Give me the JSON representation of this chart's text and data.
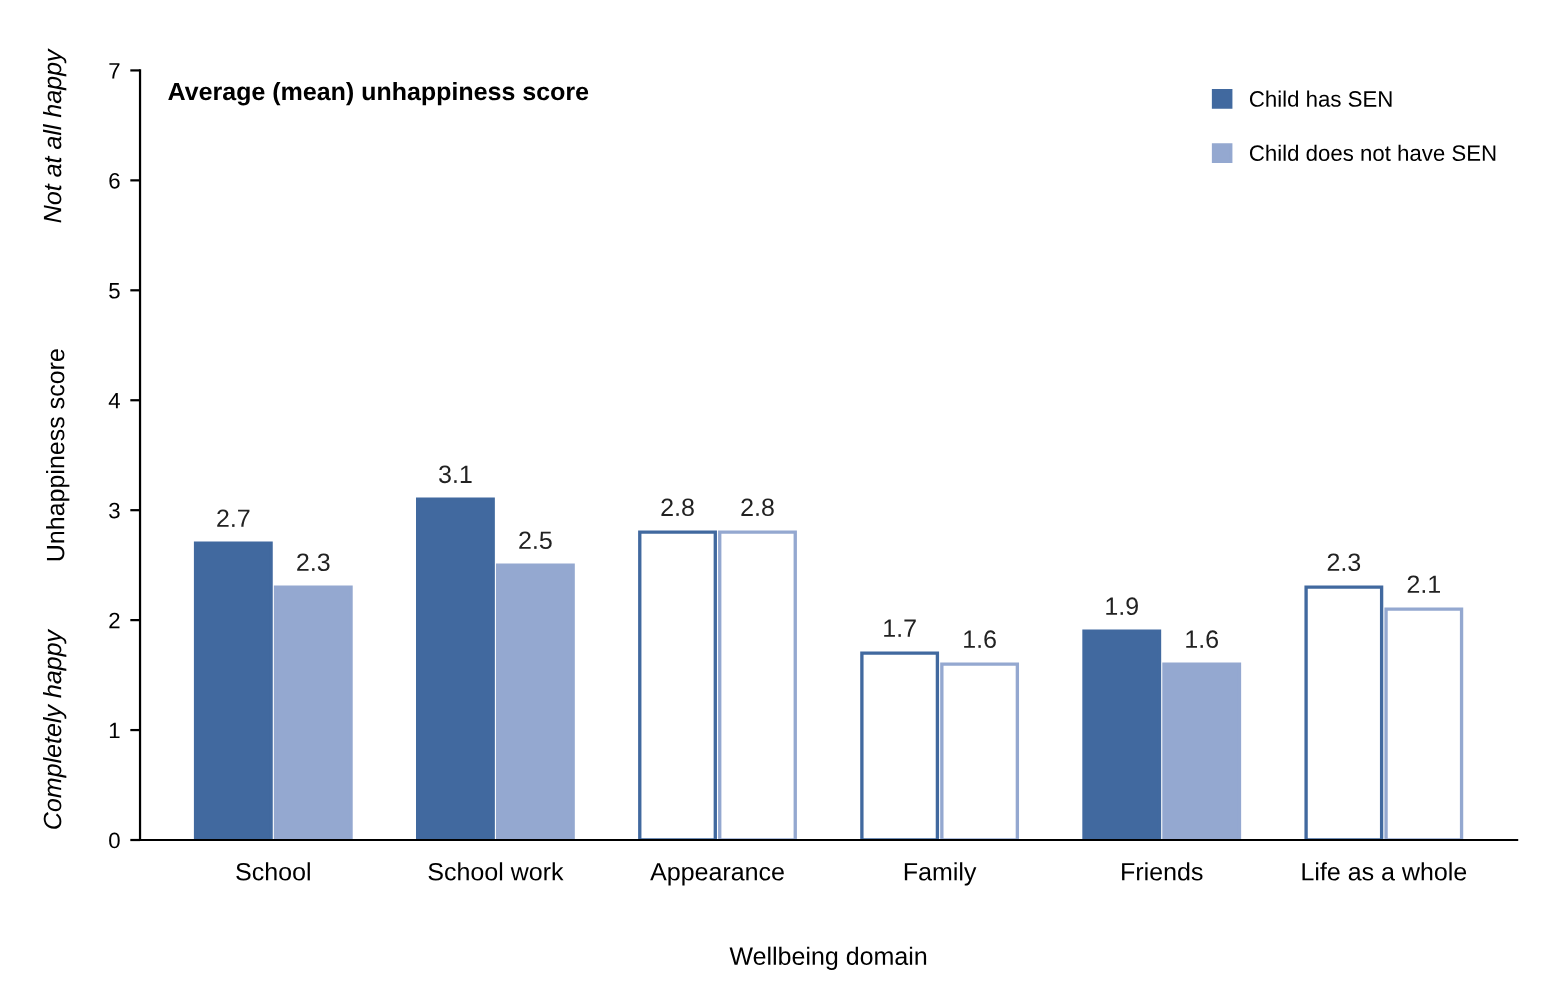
{
  "chart_data": {
    "type": "bar",
    "title": "Average (mean) unhappiness score",
    "xlabel": "Wellbeing domain",
    "ylabel": "Unhappiness score",
    "annotations": [
      "Completely happy",
      "Not at all happy"
    ],
    "categories": [
      "School",
      "School work",
      "Appearance",
      "Family",
      "Friends",
      "Life as a whole"
    ],
    "series": [
      {
        "name": "Child has SEN",
        "color": "#41699f",
        "values": [
          2.7,
          3.1,
          2.8,
          1.7,
          1.9,
          2.3
        ],
        "colors": [
          "#41699f",
          "#41699f",
          "#ffffff",
          "#ffffff",
          "#41699f",
          "#ffffff"
        ]
      },
      {
        "name": "Child does not have SEN",
        "color": "#94a8d0",
        "values": [
          2.3,
          2.5,
          2.8,
          1.6,
          1.6,
          2.1
        ],
        "colors": [
          "#94a8d0",
          "#94a8d0",
          "#ffffff",
          "#ffffff",
          "#94a8d0",
          "#ffffff"
        ]
      }
    ],
    "ylim": [
      0,
      7
    ],
    "yticks": [
      0,
      1,
      2,
      3,
      4,
      5,
      6,
      7
    ],
    "data_labels": true,
    "legend": "top right",
    "grid": false
  }
}
